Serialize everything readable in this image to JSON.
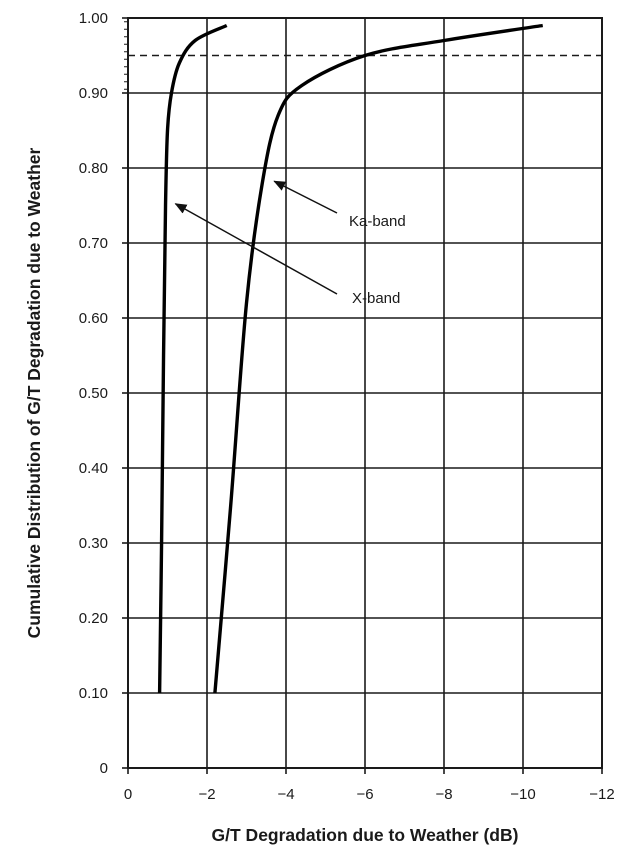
{
  "chart_data": {
    "type": "line",
    "xlabel": "G/T Degradation due to Weather (dB)",
    "ylabel": "Cumulative Distribution of G/T Degradation due to Weather",
    "xlim": [
      0,
      -12
    ],
    "ylim": [
      0,
      1.0
    ],
    "x_ticks": [
      0,
      -2,
      -4,
      -6,
      -8,
      -10,
      -12
    ],
    "x_tick_labels": [
      "0",
      "−2",
      "−4",
      "−6",
      "−8",
      "−10",
      "−12"
    ],
    "y_ticks": [
      0,
      0.1,
      0.2,
      0.3,
      0.4,
      0.5,
      0.6,
      0.7,
      0.8,
      0.9,
      1.0
    ],
    "y_tick_labels": [
      "0",
      "0.10",
      "0.20",
      "0.30",
      "0.40",
      "0.50",
      "0.60",
      "0.70",
      "0.80",
      "0.90",
      "1.00"
    ],
    "grid": true,
    "reference_line": {
      "y": 0.95,
      "style": "dashed"
    },
    "series": [
      {
        "name": "X-band",
        "color": "#000000",
        "points": [
          [
            -0.8,
            0.1
          ],
          [
            -0.85,
            0.3
          ],
          [
            -0.9,
            0.55
          ],
          [
            -0.95,
            0.75
          ],
          [
            -1.0,
            0.85
          ],
          [
            -1.1,
            0.9
          ],
          [
            -1.3,
            0.94
          ],
          [
            -1.7,
            0.97
          ],
          [
            -2.5,
            0.99
          ]
        ]
      },
      {
        "name": "Ka-band",
        "color": "#000000",
        "points": [
          [
            -2.2,
            0.1
          ],
          [
            -2.6,
            0.35
          ],
          [
            -3.0,
            0.62
          ],
          [
            -3.4,
            0.78
          ],
          [
            -3.8,
            0.87
          ],
          [
            -4.4,
            0.91
          ],
          [
            -6.0,
            0.95
          ],
          [
            -8.0,
            0.97
          ],
          [
            -10.5,
            0.99
          ]
        ]
      }
    ],
    "annotations": [
      {
        "text": "Ka-band",
        "points_to": [
          -3.6,
          0.785
        ]
      },
      {
        "text": "X-band",
        "points_to": [
          -1.1,
          0.755
        ]
      }
    ]
  }
}
